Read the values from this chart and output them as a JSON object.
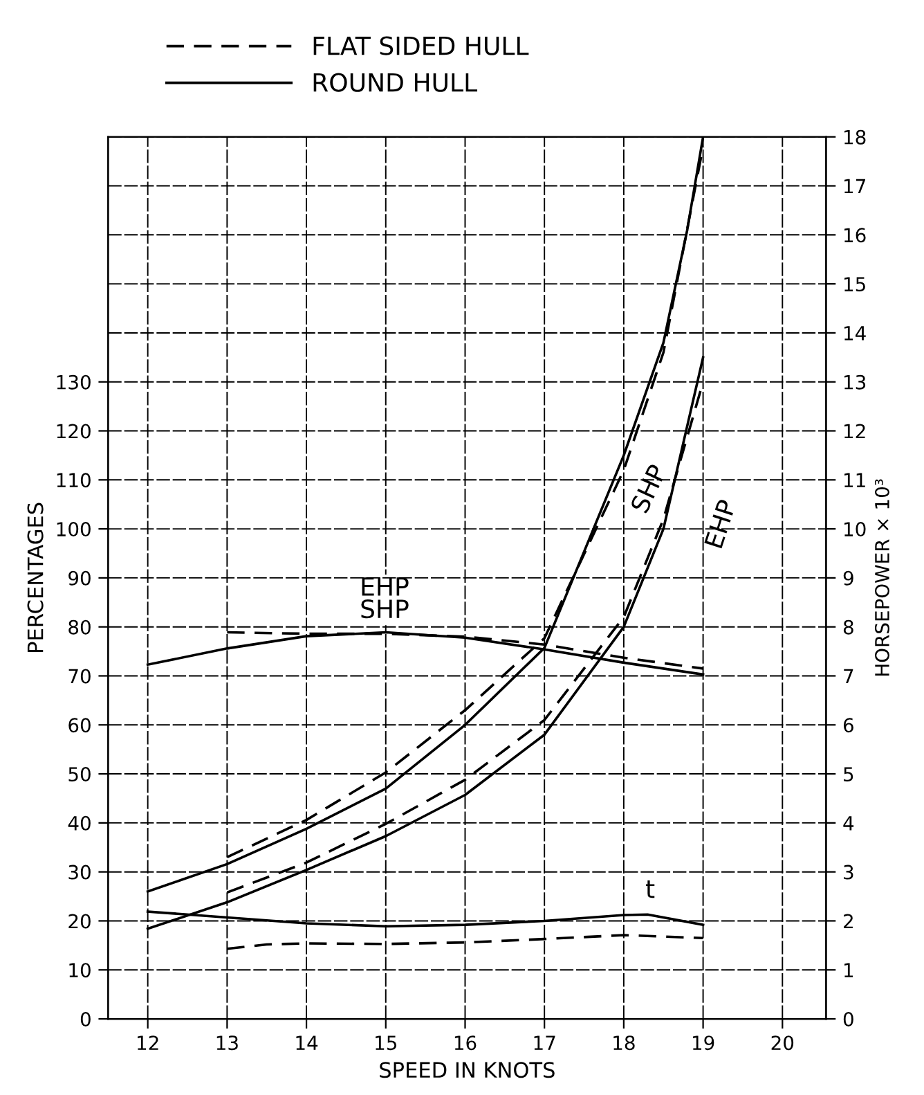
{
  "chart_data": {
    "type": "line",
    "xlabel": "SPEED IN KNOTS",
    "ylabel": "PERCENTAGES",
    "y2label": "HORSEPOWER × 10³",
    "xlim": [
      11.5,
      20.55
    ],
    "xticks": [
      12,
      13,
      14,
      15,
      16,
      17,
      18,
      19,
      20
    ],
    "ylim": [
      0,
      180
    ],
    "yticks": [
      0,
      10,
      20,
      30,
      40,
      50,
      60,
      70,
      80,
      90,
      100,
      110,
      120,
      130
    ],
    "y2lim": [
      0,
      18
    ],
    "y2ticks": [
      0,
      1,
      2,
      3,
      4,
      5,
      6,
      7,
      8,
      9,
      10,
      11,
      12,
      13,
      14,
      15,
      16,
      17,
      18
    ],
    "grid": true,
    "legend": "top left",
    "tick_labels": "xy",
    "series": [
      {
        "name": "ROUND HULL",
        "color": "#000000",
        "line_style": "solid",
        "axis": "y2",
        "x": [
          12,
          13,
          14,
          15,
          16,
          17,
          18,
          18.5,
          18.8,
          19
        ],
        "values": [
          2.6,
          3.16,
          3.88,
          4.7,
          6.0,
          7.57,
          11.5,
          13.8,
          16.1,
          18
        ]
      },
      {
        "name": "FLAT SIDED HULL",
        "color": "#000000",
        "line_style": "dashed",
        "axis": "y2",
        "x": [
          13,
          14,
          15,
          16,
          17,
          18,
          18.5,
          19
        ],
        "values": [
          3.3,
          4.06,
          5.03,
          6.3,
          7.77,
          11.2,
          13.6,
          17.8
        ]
      },
      {
        "color": "#000000",
        "line_style": "solid",
        "axis": "y2",
        "x": [
          12,
          13,
          14,
          15,
          16,
          17,
          18,
          18.5,
          19
        ],
        "values": [
          1.84,
          2.38,
          3.04,
          3.73,
          4.57,
          5.8,
          8.0,
          10.0,
          13.5
        ]
      },
      {
        "color": "#000000",
        "line_style": "dashed",
        "axis": "y2",
        "x": [
          13,
          14,
          15,
          16,
          17,
          18,
          18.5,
          19
        ],
        "values": [
          2.58,
          3.19,
          3.98,
          4.88,
          6.1,
          8.2,
          10.2,
          13.0
        ]
      },
      {
        "color": "#000000",
        "line_style": "solid",
        "x": [
          12,
          13,
          14,
          15,
          16,
          17,
          18,
          19
        ],
        "values": [
          72.3,
          75.6,
          78.1,
          78.9,
          77.8,
          75.4,
          72.7,
          70.3
        ]
      },
      {
        "color": "#000000",
        "line_style": "dashed",
        "x": [
          13,
          14,
          15,
          16,
          17,
          18,
          19
        ],
        "values": [
          78.9,
          78.6,
          78.6,
          78.0,
          76.4,
          73.7,
          71.5
        ]
      },
      {
        "color": "#000000",
        "line_style": "solid",
        "x": [
          12,
          13,
          14,
          15,
          16,
          17,
          18,
          18.3,
          19
        ],
        "values": [
          21.9,
          20.7,
          19.5,
          18.9,
          19.2,
          20.0,
          21.2,
          21.3,
          19.2
        ]
      },
      {
        "color": "#000000",
        "line_style": "dashed",
        "x": [
          13,
          13.5,
          14,
          15,
          16,
          17,
          18,
          19
        ],
        "values": [
          14.3,
          15.2,
          15.4,
          15.3,
          15.6,
          16.3,
          17.1,
          16.5
        ]
      }
    ],
    "annotations": [
      "EHP\nSHP",
      "SHP",
      "EHP",
      "t"
    ]
  }
}
